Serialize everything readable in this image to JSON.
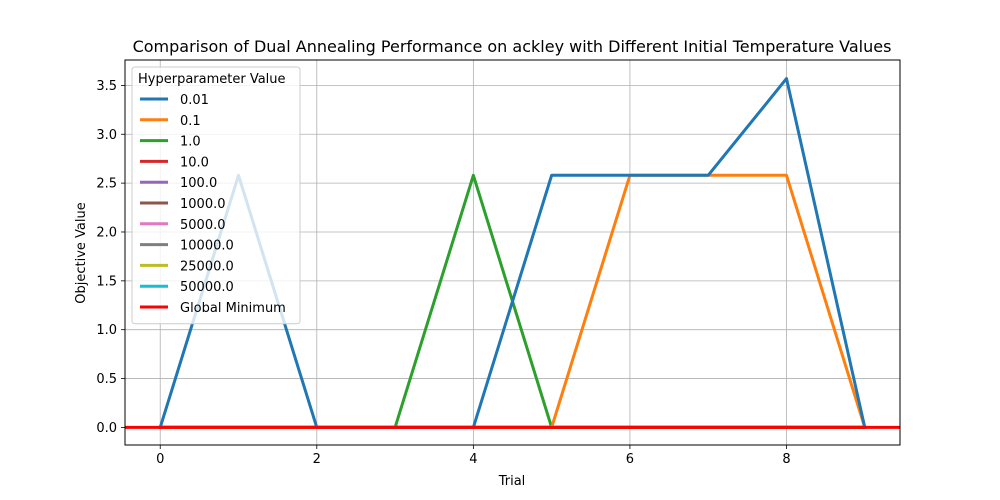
{
  "chart_data": {
    "type": "line",
    "title": "Comparison of Dual Annealing Performance on ackley with Different Initial Temperature Values",
    "xlabel": "Trial",
    "ylabel": "Objective Value",
    "xlim": [
      -0.45,
      9.45
    ],
    "ylim": [
      -0.18,
      3.76
    ],
    "xticks": [
      0,
      2,
      4,
      6,
      8
    ],
    "xtick_labels": [
      "0",
      "2",
      "4",
      "6",
      "8"
    ],
    "yticks": [
      0.0,
      0.5,
      1.0,
      1.5,
      2.0,
      2.5,
      3.0,
      3.5
    ],
    "ytick_labels": [
      "0.0",
      "0.5",
      "1.0",
      "1.5",
      "2.0",
      "2.5",
      "3.0",
      "3.5"
    ],
    "grid": true,
    "legend": {
      "title": "Hyperparameter Value",
      "placement": "top-left"
    },
    "x": [
      0,
      1,
      2,
      3,
      4,
      5,
      6,
      7,
      8,
      9
    ],
    "series": [
      {
        "name": "0.01",
        "color": "#1f77b4",
        "values": [
          0,
          2.58,
          0,
          0,
          0,
          2.58,
          2.58,
          2.58,
          3.57,
          0
        ]
      },
      {
        "name": "0.1",
        "color": "#ff7f0e",
        "values": [
          0,
          0,
          0,
          0,
          0,
          0,
          2.58,
          2.58,
          2.58,
          0
        ]
      },
      {
        "name": "1.0",
        "color": "#2ca02c",
        "values": [
          0,
          0,
          0,
          0,
          2.58,
          0,
          0,
          0,
          0,
          0
        ]
      },
      {
        "name": "10.0",
        "color": "#d62728",
        "values": [
          0,
          0,
          0,
          0,
          0,
          0,
          0,
          0,
          0,
          0
        ]
      },
      {
        "name": "100.0",
        "color": "#9467bd",
        "values": [
          0,
          0,
          0,
          0,
          0,
          0,
          0,
          0,
          0,
          0
        ]
      },
      {
        "name": "1000.0",
        "color": "#8c564b",
        "values": [
          0,
          0,
          0,
          0,
          0,
          0,
          0,
          0,
          0,
          0
        ]
      },
      {
        "name": "5000.0",
        "color": "#e377c2",
        "values": [
          0,
          0,
          0,
          0,
          0,
          0,
          0,
          0,
          0,
          0
        ]
      },
      {
        "name": "10000.0",
        "color": "#7f7f7f",
        "values": [
          0,
          0,
          0,
          0,
          0,
          0,
          0,
          0,
          0,
          0
        ]
      },
      {
        "name": "25000.0",
        "color": "#bcbd22",
        "values": [
          0,
          0,
          0,
          0,
          0,
          0,
          0,
          0,
          0,
          0
        ]
      },
      {
        "name": "50000.0",
        "color": "#17becf",
        "values": [
          0,
          0,
          0,
          0,
          0,
          0,
          0,
          0,
          0,
          0
        ]
      }
    ],
    "reference_line": {
      "name": "Global Minimum",
      "color": "#ff0000",
      "y": 0
    }
  }
}
